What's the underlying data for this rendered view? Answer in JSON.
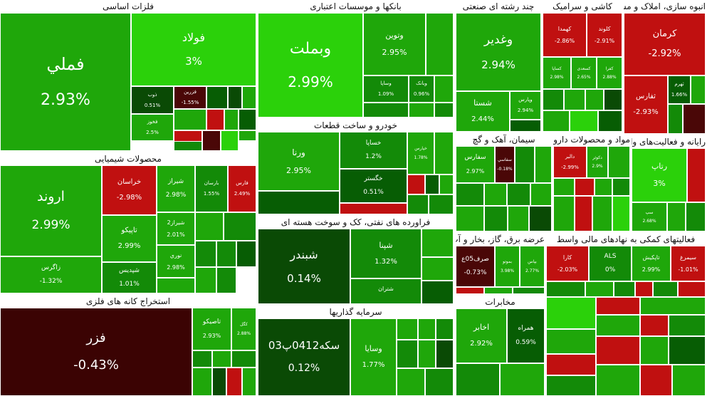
{
  "chart_data": {
    "type": "treemap",
    "value_unit": "%",
    "colors": {
      "strong_up": "#2bd10a",
      "up": "#1fa70a",
      "mild_up": "#138a08",
      "flat_up": "#075d04",
      "dark_up": "#0a4a05",
      "mild_down": "#c01010",
      "down": "#a50d0d",
      "dark_down": "#4a0707",
      "very_dark_down": "#3b0303"
    },
    "sectors": [
      {
        "name": "فلزات اساسی",
        "stocks": [
          {
            "symbol": "فملي",
            "change": "2.93%"
          },
          {
            "symbol": "فولاد",
            "change": "3%"
          },
          {
            "symbol": "فخوز",
            "change": "2.5%"
          },
          {
            "symbol": "ذوب",
            "change": "0.51%"
          },
          {
            "symbol": "فزرین",
            "change": "-1.55%"
          }
        ]
      },
      {
        "name": "بانکها و موسسات اعتباری",
        "stocks": [
          {
            "symbol": "وبملت",
            "change": "2.99%"
          },
          {
            "symbol": "وتوين",
            "change": "2.95%"
          },
          {
            "symbol": "وساپا",
            "change": "1.09%"
          },
          {
            "symbol": "وبانک",
            "change": "0.96%"
          }
        ]
      },
      {
        "name": "چند رشته ای صنعتی",
        "stocks": [
          {
            "symbol": "وغدير",
            "change": "2.94%"
          },
          {
            "symbol": "شستا",
            "change": "2.44%"
          },
          {
            "symbol": "وپارس",
            "change": "2.94%"
          }
        ]
      },
      {
        "name": "انبوه سازی، املاک و مستغلات",
        "stocks": [
          {
            "symbol": "كرمان",
            "change": "-2.92%"
          },
          {
            "symbol": "ثفارس",
            "change": "-2.93%"
          },
          {
            "symbol": "ثهرم",
            "change": "1.66%"
          }
        ]
      },
      {
        "name": "کاشی و سرامیک",
        "stocks": [
          {
            "symbol": "کهمدا",
            "change": "-2.86%"
          },
          {
            "symbol": "کلوند",
            "change": "-2.91%"
          },
          {
            "symbol": "کساپا",
            "change": "2.98%"
          },
          {
            "symbol": "کسعدی",
            "change": "2.65%"
          },
          {
            "symbol": "کفرا",
            "change": "2.88%"
          }
        ]
      },
      {
        "name": "محصولات شیمیایی",
        "stocks": [
          {
            "symbol": "اروند",
            "change": "2.99%"
          },
          {
            "symbol": "خراسان",
            "change": "-2.98%"
          },
          {
            "symbol": "تاپيكو",
            "change": "2.99%"
          },
          {
            "symbol": "شيراز",
            "change": "2.98%"
          },
          {
            "symbol": "شپديس",
            "change": "1.01%"
          },
          {
            "symbol": "نوري",
            "change": "2.98%"
          },
          {
            "symbol": "شيراز2",
            "change": "2.01%"
          },
          {
            "symbol": "فارس",
            "change": "2.49%"
          },
          {
            "symbol": "بارسان",
            "change": "1.55%"
          },
          {
            "symbol": "زاگرس",
            "change": "-1.32%"
          }
        ]
      },
      {
        "name": "خودرو و ساخت قطعات",
        "stocks": [
          {
            "symbol": "ورنا",
            "change": "2.95%"
          },
          {
            "symbol": "خساپا",
            "change": "1.2%"
          },
          {
            "symbol": "خگستر",
            "change": "0.51%"
          },
          {
            "symbol": "خپارس",
            "change": "1.78%"
          }
        ]
      },
      {
        "name": "سیمان، آهک و گچ",
        "stocks": [
          {
            "symbol": "سفارس",
            "change": "2.97%"
          },
          {
            "symbol": "سفاسي",
            "change": "-0.18%"
          }
        ]
      },
      {
        "name": "مواد و محصولات دارویی",
        "stocks": [
          {
            "symbol": "دالبر",
            "change": "-2.99%"
          },
          {
            "symbol": "دكوثر",
            "change": "2.9%"
          }
        ]
      },
      {
        "name": "رایانه و فعالیت‌های وابسته به آن",
        "stocks": [
          {
            "symbol": "رتاپ",
            "change": "3%"
          },
          {
            "symbol": "سپ",
            "change": "2.68%"
          }
        ]
      },
      {
        "name": "فراورده های نفتی، کک و سوخت هسته ای",
        "stocks": [
          {
            "symbol": "شبندر",
            "change": "0.14%"
          },
          {
            "symbol": "شپنا",
            "change": "1.32%"
          },
          {
            "symbol": "شتران",
            "change": ""
          }
        ]
      },
      {
        "name": "عرضه برق، گاز، بخار و آب گرم",
        "stocks": [
          {
            "symbol": "صرف05ع",
            "change": "-0.73%"
          },
          {
            "symbol": "بموتو",
            "change": "3.98%"
          },
          {
            "symbol": "بپاس",
            "change": "2.77%"
          }
        ]
      },
      {
        "name": "فعالیتهای کمکی به نهادهای مالی واسط",
        "stocks": [
          {
            "symbol": "کارا",
            "change": "-2.03%"
          },
          {
            "symbol": "ALS",
            "change": "0%"
          },
          {
            "symbol": "تاپکیش",
            "change": "2.99%"
          },
          {
            "symbol": "سیمرغ",
            "change": "-1.01%"
          }
        ]
      },
      {
        "name": "مخابرات",
        "stocks": [
          {
            "symbol": "اخابر",
            "change": "2.92%"
          },
          {
            "symbol": "همراه",
            "change": "0.59%"
          }
        ]
      },
      {
        "name": "استخراج کانه های فلزی",
        "stocks": [
          {
            "symbol": "فزر",
            "change": "-0.43%"
          },
          {
            "symbol": "تاصيكو",
            "change": "2.93%"
          },
          {
            "symbol": "کگل",
            "change": "2.88%"
          }
        ]
      },
      {
        "name": "سرمایه گذاریها",
        "stocks": [
          {
            "symbol": "سكه0412پ03",
            "change": "0.12%"
          },
          {
            "symbol": "وسايا",
            "change": "1.77%"
          }
        ]
      }
    ]
  }
}
